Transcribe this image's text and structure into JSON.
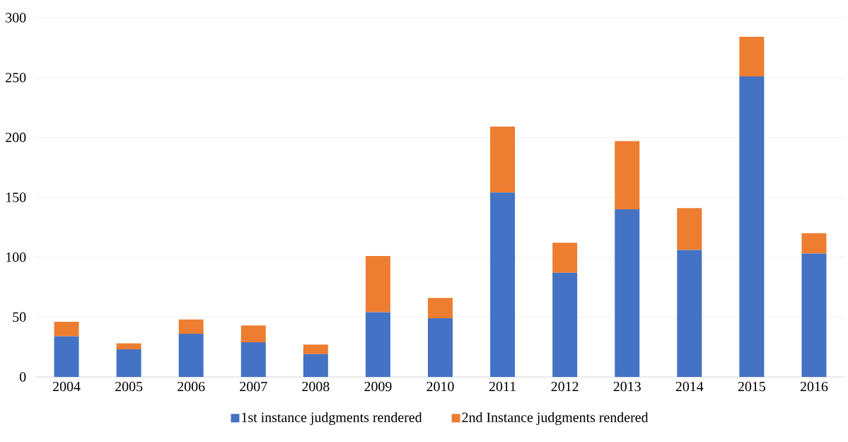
{
  "chart_data": {
    "type": "bar",
    "stacked": true,
    "categories": [
      "2004",
      "2005",
      "2006",
      "2007",
      "2008",
      "2009",
      "2010",
      "2011",
      "2012",
      "2013",
      "2014",
      "2015",
      "2016"
    ],
    "series": [
      {
        "name": "1st instance judgments rendered",
        "color": "#4472c4",
        "values": [
          34,
          23,
          36,
          29,
          19,
          54,
          49,
          154,
          87,
          140,
          106,
          251,
          103
        ]
      },
      {
        "name": "2nd Instance judgments rendered",
        "color": "#ed7d31",
        "values": [
          12,
          5,
          12,
          14,
          8,
          47,
          17,
          55,
          25,
          57,
          35,
          33,
          17
        ]
      }
    ],
    "ylim": [
      0,
      300
    ],
    "yticks": [
      0,
      50,
      100,
      150,
      200,
      250,
      300
    ],
    "grid": "y",
    "legend": "bottom"
  }
}
